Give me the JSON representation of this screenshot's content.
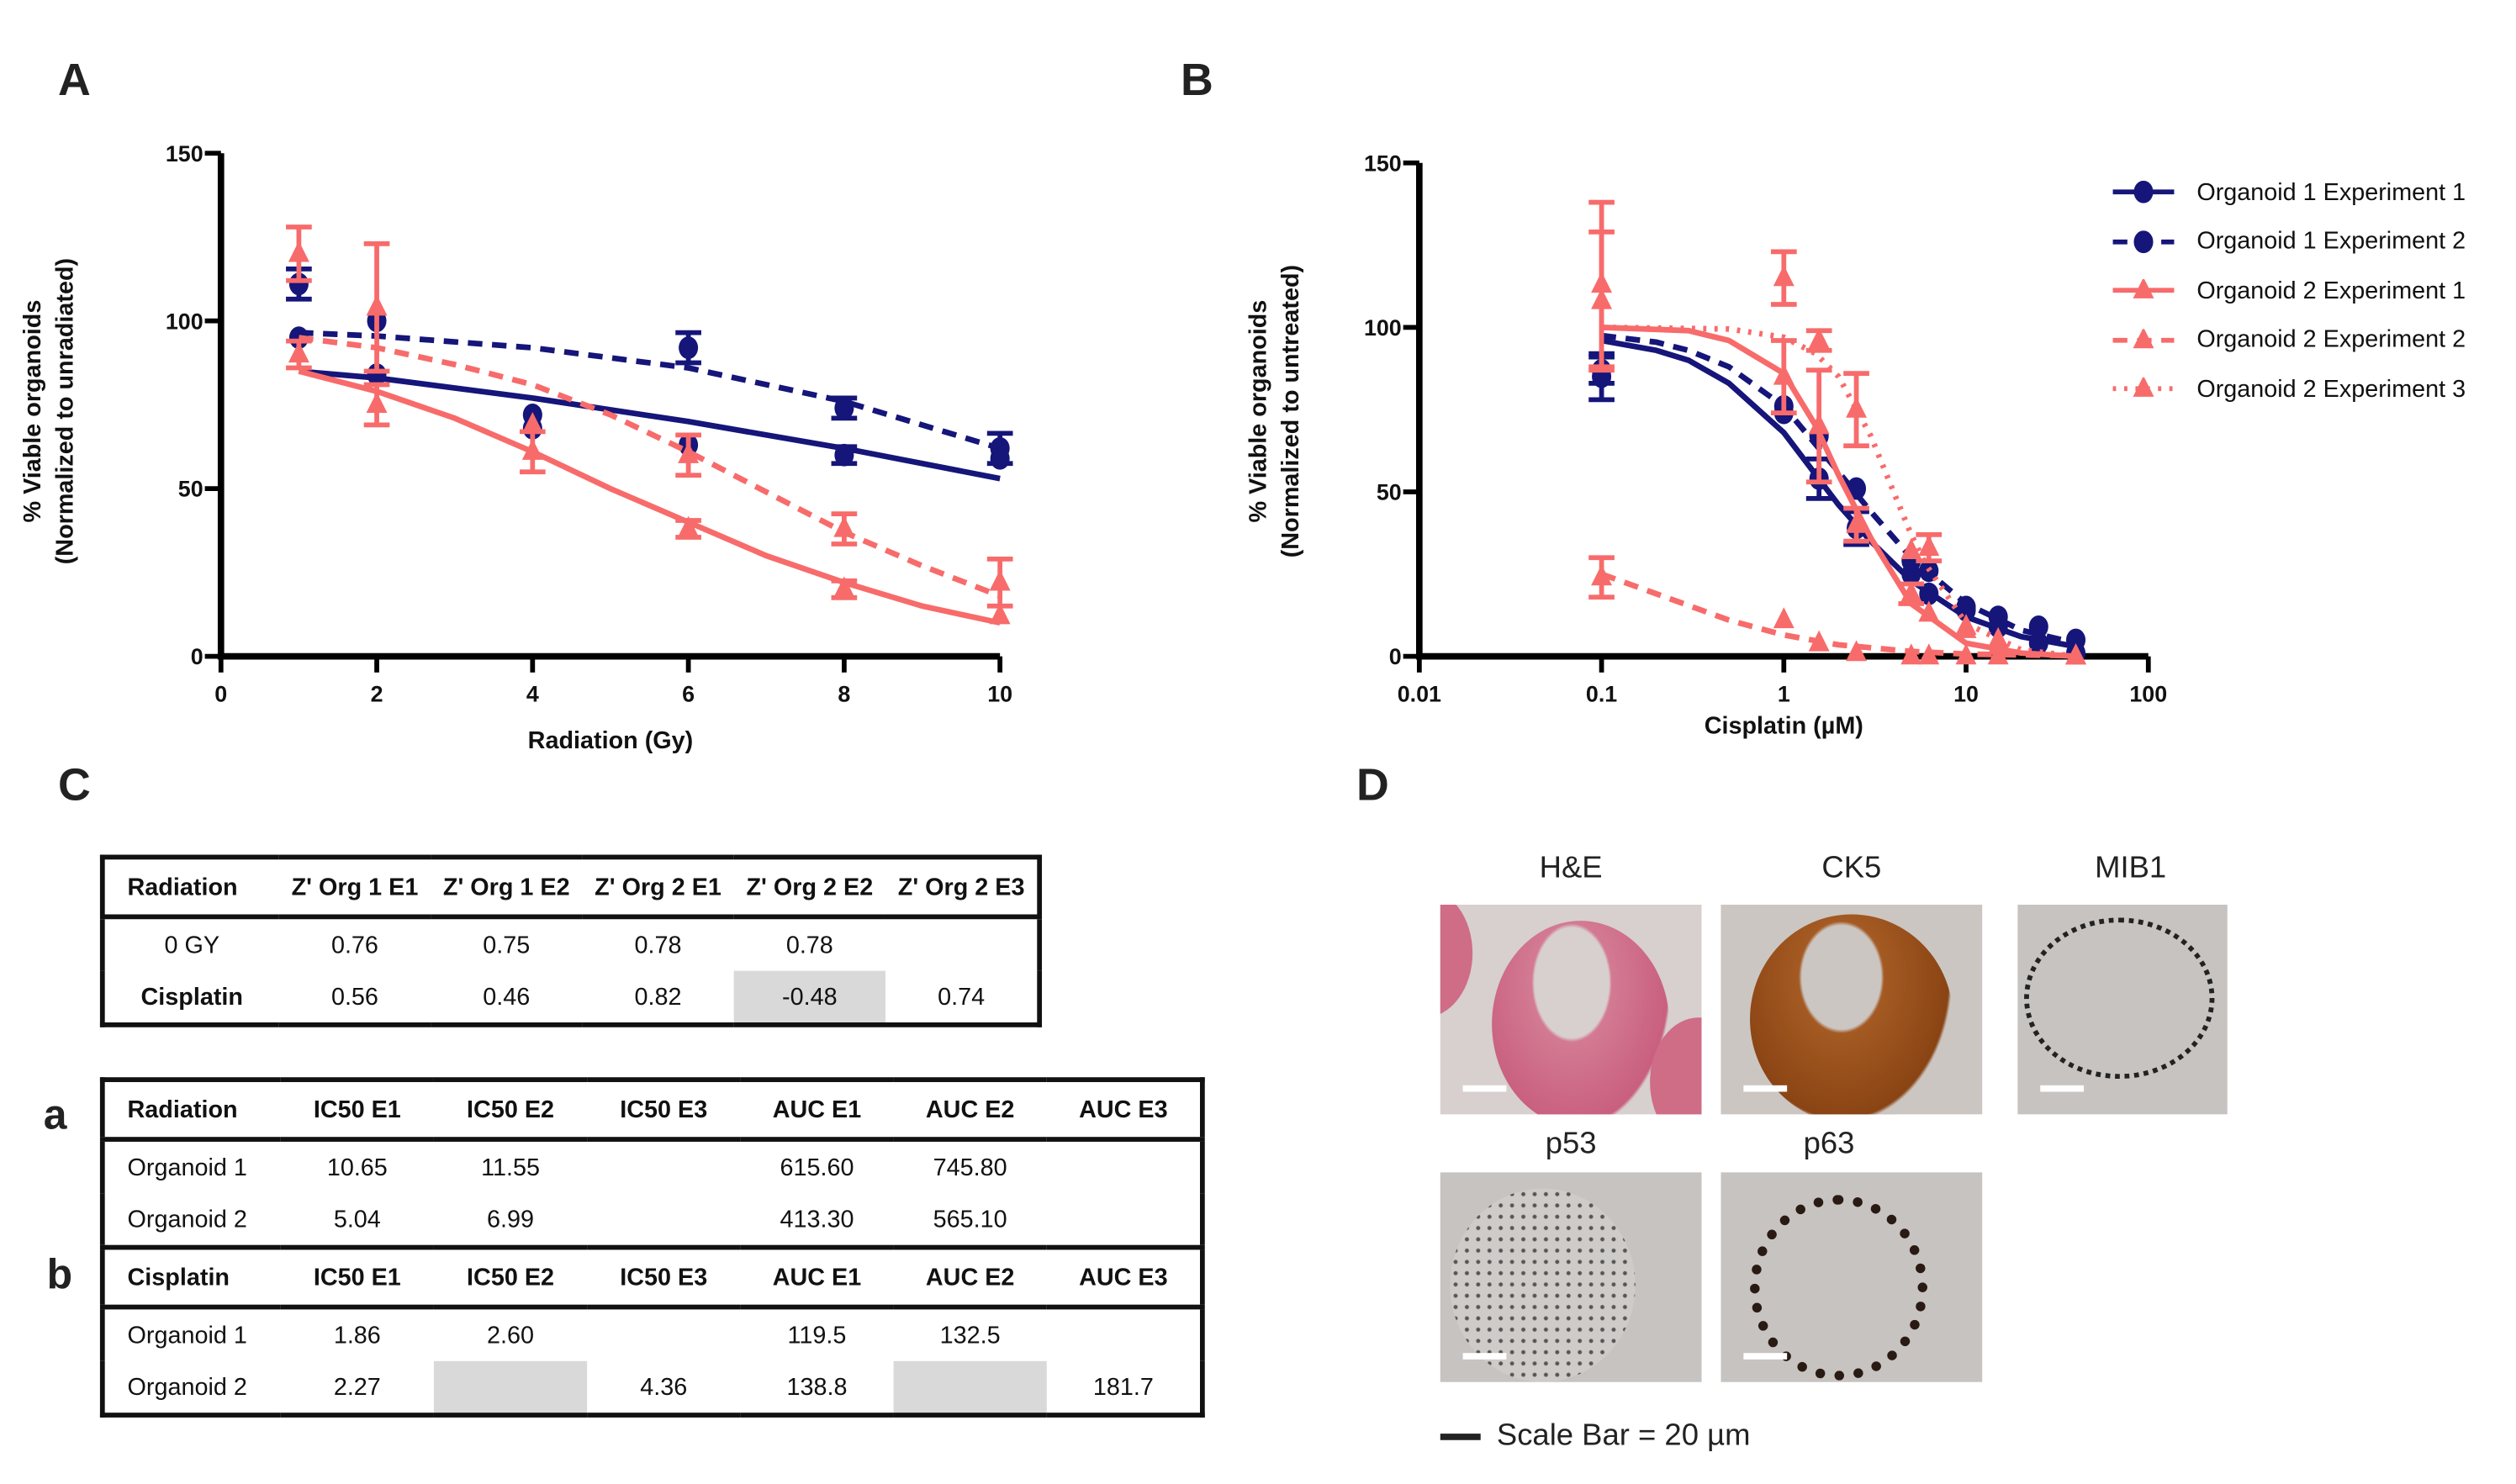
{
  "panels": {
    "a": "A",
    "b": "B",
    "c": "C",
    "d": "D"
  },
  "colors": {
    "organoid1": "#15157a",
    "organoid2": "#f86b6b"
  },
  "chart_data": [
    {
      "type": "line",
      "xlabel": "Radiation (Gy)",
      "ylabel": [
        "% Viable organoids",
        "(Normalized to unradiated)"
      ],
      "xlim": [
        0,
        10
      ],
      "ylim": [
        0,
        150
      ],
      "xticks": [
        "0",
        "2",
        "4",
        "6",
        "8",
        "10"
      ],
      "yticks": [
        "0",
        "50",
        "100",
        "150"
      ],
      "grid": false,
      "series": [
        {
          "key": "o1e1",
          "color": "#15157a",
          "marker": "circle",
          "line": "solid",
          "x": [
            1,
            2,
            4,
            6,
            8,
            10
          ],
          "y": [
            111,
            84,
            68,
            63,
            60,
            59
          ],
          "err": [
            4.5,
            0,
            0,
            0,
            2.5,
            0
          ],
          "fit": [
            [
              1,
              85
            ],
            [
              2,
              83
            ],
            [
              4,
              77
            ],
            [
              6,
              70
            ],
            [
              8,
              62
            ],
            [
              10,
              53
            ]
          ]
        },
        {
          "key": "o1e2",
          "color": "#15157a",
          "marker": "circle",
          "line": "dashed",
          "x": [
            1,
            2,
            4,
            6,
            8,
            10
          ],
          "y": [
            95,
            100,
            72,
            92,
            74,
            62
          ],
          "err": [
            0,
            0,
            0,
            4.5,
            3,
            4.5
          ],
          "fit": [
            [
              1,
              96.5
            ],
            [
              2,
              95.5
            ],
            [
              4,
              92
            ],
            [
              6,
              86
            ],
            [
              8,
              76
            ],
            [
              10,
              62
            ]
          ]
        },
        {
          "key": "o2e1",
          "color": "#f86b6b",
          "marker": "triangle",
          "line": "solid",
          "x": [
            1,
            2,
            4,
            6,
            8,
            10
          ],
          "y": [
            90,
            75,
            61,
            38,
            20,
            12
          ],
          "err": [
            4,
            6,
            6,
            2.5,
            2.5,
            0
          ],
          "fit": [
            [
              1,
              85
            ],
            [
              2,
              79
            ],
            [
              3,
              71
            ],
            [
              4,
              61
            ],
            [
              5,
              50
            ],
            [
              6,
              40
            ],
            [
              7,
              30
            ],
            [
              8,
              22
            ],
            [
              9,
              15
            ],
            [
              10,
              10
            ]
          ]
        },
        {
          "key": "o2e2",
          "color": "#f86b6b",
          "marker": "triangle",
          "line": "dashed",
          "x": [
            1,
            2,
            4,
            6,
            8,
            10
          ],
          "y": [
            120,
            104,
            69,
            60,
            38,
            22
          ],
          "err": [
            8,
            19,
            0,
            6,
            4.5,
            7
          ],
          "fit": [
            [
              1,
              95
            ],
            [
              2,
              92
            ],
            [
              3,
              87
            ],
            [
              4,
              81
            ],
            [
              5,
              72
            ],
            [
              6,
              61
            ],
            [
              7,
              49
            ],
            [
              8,
              37
            ],
            [
              9,
              27
            ],
            [
              10,
              18
            ]
          ]
        }
      ]
    },
    {
      "type": "line",
      "xlabel": "Cisplatin (µM)",
      "ylabel": [
        "% Viable organoids",
        "(Normalized to untreated)"
      ],
      "xscale": "log",
      "xlim": [
        0.01,
        100
      ],
      "ylim": [
        0,
        150
      ],
      "xticks": [
        "0.01",
        "0.1",
        "1",
        "10",
        "100"
      ],
      "yticks": [
        "0",
        "50",
        "100",
        "150"
      ],
      "grid": false,
      "legend": "top-right",
      "series": [
        {
          "key": "o1e1",
          "name": "Organoid 1 Experiment 1",
          "color": "#15157a",
          "marker": "circle",
          "line": "solid",
          "x": [
            0.1,
            1,
            1.56,
            2.5,
            5,
            6.25,
            10,
            15,
            25,
            40
          ],
          "y": [
            85,
            74,
            54,
            39,
            25,
            19,
            14,
            9,
            4,
            1
          ],
          "err": [
            7,
            0,
            6,
            5,
            0,
            0,
            0,
            0,
            0,
            0
          ],
          "fit": [
            [
              0.1,
              96
            ],
            [
              0.2,
              93
            ],
            [
              0.3,
              90
            ],
            [
              0.5,
              83
            ],
            [
              1,
              68
            ],
            [
              2,
              46
            ],
            [
              3,
              35
            ],
            [
              5,
              23
            ],
            [
              10,
              12
            ],
            [
              20,
              6
            ],
            [
              40,
              3
            ]
          ]
        },
        {
          "key": "o1e2",
          "name": "Organoid 1 Experiment 2",
          "color": "#15157a",
          "marker": "circle",
          "line": "dashed",
          "x": [
            0.1,
            1,
            1.56,
            2.5,
            5,
            6.25,
            10,
            15,
            25,
            40
          ],
          "y": [
            87,
            76,
            67,
            51,
            29,
            26,
            15,
            12,
            9,
            5
          ],
          "err": [
            4,
            0,
            0,
            0,
            0,
            0,
            0,
            0,
            0,
            0
          ],
          "fit": [
            [
              0.1,
              97.5
            ],
            [
              0.2,
              95.5
            ],
            [
              0.3,
              93
            ],
            [
              0.5,
              88
            ],
            [
              1,
              76
            ],
            [
              2,
              56
            ],
            [
              3,
              44
            ],
            [
              5,
              30
            ],
            [
              10,
              16
            ],
            [
              20,
              8
            ],
            [
              40,
              4
            ]
          ]
        },
        {
          "key": "o2e1",
          "name": "Organoid 2 Experiment 1",
          "color": "#f86b6b",
          "marker": "triangle",
          "line": "solid",
          "x": [
            0.1,
            1,
            1.56,
            2.5,
            5,
            6.25,
            10,
            15,
            40
          ],
          "y": [
            108,
            85,
            70,
            40,
            19,
            13,
            8,
            3,
            0
          ],
          "err": [
            21,
            11,
            17,
            5,
            3,
            0,
            0,
            0,
            0
          ],
          "fit": [
            [
              0.1,
              100
            ],
            [
              0.3,
              99
            ],
            [
              0.5,
              96
            ],
            [
              1,
              86
            ],
            [
              1.5,
              70
            ],
            [
              2,
              55
            ],
            [
              3,
              36
            ],
            [
              5,
              16
            ],
            [
              10,
              4
            ],
            [
              20,
              1
            ],
            [
              40,
              0
            ]
          ]
        },
        {
          "key": "o2e2",
          "name": "Organoid 2 Experiment 2",
          "color": "#f86b6b",
          "marker": "triangle",
          "line": "dashed",
          "x": [
            0.1,
            1,
            1.56,
            2.5,
            5,
            6.25,
            10,
            15,
            40
          ],
          "y": [
            24,
            11,
            4,
            1,
            0,
            0,
            0,
            0,
            0
          ],
          "err": [
            6,
            0,
            0,
            0,
            0,
            0,
            0,
            0,
            0
          ],
          "fit": [
            [
              0.1,
              25
            ],
            [
              0.2,
              19
            ],
            [
              0.5,
              11
            ],
            [
              1,
              6.5
            ],
            [
              2,
              3.5
            ],
            [
              5,
              1.5
            ],
            [
              10,
              0.7
            ],
            [
              40,
              0.2
            ]
          ]
        },
        {
          "key": "o2e3",
          "name": "Organoid 2 Experiment 3",
          "color": "#f86b6b",
          "marker": "triangle",
          "line": "dotted",
          "x": [
            0.1,
            1,
            1.56,
            2.5,
            5,
            6.25,
            10,
            15,
            40
          ],
          "y": [
            113,
            115,
            96,
            75,
            32,
            33,
            9,
            5,
            0
          ],
          "err": [
            25,
            8,
            3,
            11,
            0,
            4,
            0,
            0,
            0
          ],
          "fit": [
            [
              0.1,
              100
            ],
            [
              0.5,
              99.5
            ],
            [
              1,
              97
            ],
            [
              1.5,
              92
            ],
            [
              2,
              85
            ],
            [
              3,
              67
            ],
            [
              4,
              50
            ],
            [
              5,
              37
            ],
            [
              6,
              28
            ],
            [
              10,
              10
            ],
            [
              20,
              2
            ],
            [
              40,
              0
            ]
          ]
        }
      ]
    }
  ],
  "zprime_table": {
    "header": [
      "Radiation",
      "Z' Org 1 E1",
      "Z' Org 1 E2",
      "Z' Org 2 E1",
      "Z' Org 2 E2",
      "Z' Org 2 E3"
    ],
    "rows": [
      [
        "0 GY",
        "0.76",
        "0.75",
        "0.78",
        "0.78",
        ""
      ],
      [
        "Cisplatin",
        "0.56",
        "0.46",
        "0.82",
        "-0.48",
        "0.74"
      ]
    ]
  },
  "ic50_table": {
    "label_a": "a",
    "label_b": "b",
    "radiation_header": [
      "Radiation",
      "IC50 E1",
      "IC50 E2",
      "IC50 E3",
      "AUC E1",
      "AUC E2",
      "AUC E3"
    ],
    "radiation_rows": [
      [
        "Organoid 1",
        "10.65",
        "11.55",
        "",
        "615.60",
        "745.80",
        ""
      ],
      [
        "Organoid 2",
        "5.04",
        "6.99",
        "",
        "413.30",
        "565.10",
        ""
      ]
    ],
    "cisplatin_header": [
      "Cisplatin",
      "IC50 E1",
      "IC50 E2",
      "IC50 E3",
      "AUC E1",
      "AUC E2",
      "AUC E3"
    ],
    "cisplatin_rows": [
      [
        "Organoid 1",
        "1.86",
        "2.60",
        "",
        "119.5",
        "132.5",
        ""
      ],
      [
        "Organoid 2",
        "2.27",
        "",
        "4.36",
        "138.8",
        "",
        "181.7"
      ]
    ]
  },
  "histology": {
    "images": [
      "H&E",
      "CK5",
      "MIB1",
      "p53",
      "p63"
    ],
    "scale_bar": "Scale Bar = 20 µm"
  }
}
